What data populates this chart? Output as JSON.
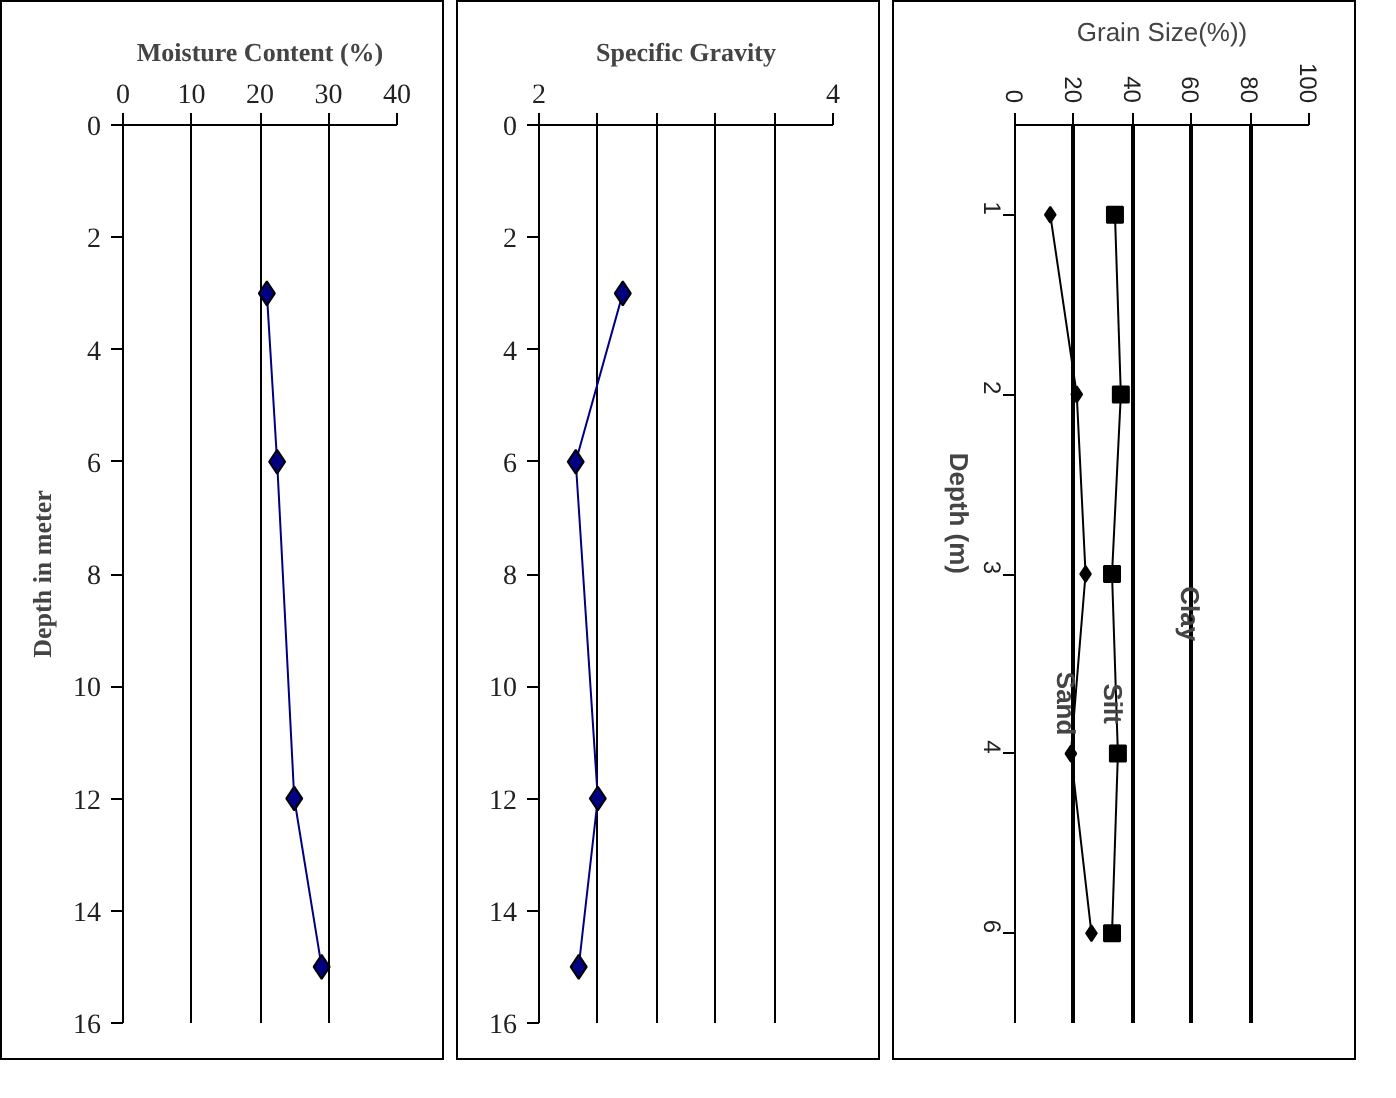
{
  "chart_data": [
    {
      "type": "line",
      "orientation": "horizontal",
      "title": "Moisture Content (%)",
      "ylabel": "Depth in meter",
      "x": [
        3,
        6,
        12,
        15
      ],
      "series": [
        {
          "color": "#000080",
          "values": [
            21,
            22.5,
            25,
            29
          ]
        }
      ],
      "xlim": [
        0,
        40
      ],
      "xticks": [
        0,
        10,
        20,
        30,
        40
      ],
      "ylim": [
        16,
        0
      ],
      "yticks": [
        0,
        2,
        4,
        6,
        8,
        10,
        12,
        14,
        16
      ],
      "grid": "x",
      "marker": "diamond"
    },
    {
      "type": "line",
      "orientation": "horizontal",
      "title": "Specific Gravity",
      "x": [
        3,
        6,
        12,
        15
      ],
      "series": [
        {
          "color": "#000080",
          "values": [
            2.57,
            2.25,
            2.4,
            2.27
          ]
        }
      ],
      "xlim": [
        2,
        4
      ],
      "xticks": [
        2,
        {
          "value": 2.4,
          "label": null
        },
        {
          "value": 2.8,
          "label": null
        },
        {
          "value": 3.2,
          "label": null
        },
        {
          "value": 3.6,
          "label": null
        },
        4
      ],
      "ylim": [
        16,
        0
      ],
      "yticks": [
        0,
        2,
        4,
        6,
        8,
        10,
        12,
        14,
        16
      ],
      "grid": "x",
      "marker": "diamond"
    },
    {
      "type": "line",
      "orientation": "horizontal",
      "title": "Grain Size(%))",
      "ylabel": "Depth (m)",
      "categories": [
        "1",
        "2",
        "3",
        "4",
        "6"
      ],
      "series": [
        {
          "name": "Sand",
          "color": "#000000",
          "marker": "diamond",
          "values": [
            12,
            21,
            24,
            19,
            26
          ]
        },
        {
          "name": "Silt",
          "color": "#000000",
          "marker": "square",
          "values": [
            34,
            36,
            33,
            35,
            33
          ]
        }
      ],
      "xlim": [
        0,
        100
      ],
      "xticks": [
        0,
        20,
        40,
        60,
        80,
        100
      ],
      "grid": "x",
      "annotations": [
        "Clay"
      ]
    }
  ]
}
